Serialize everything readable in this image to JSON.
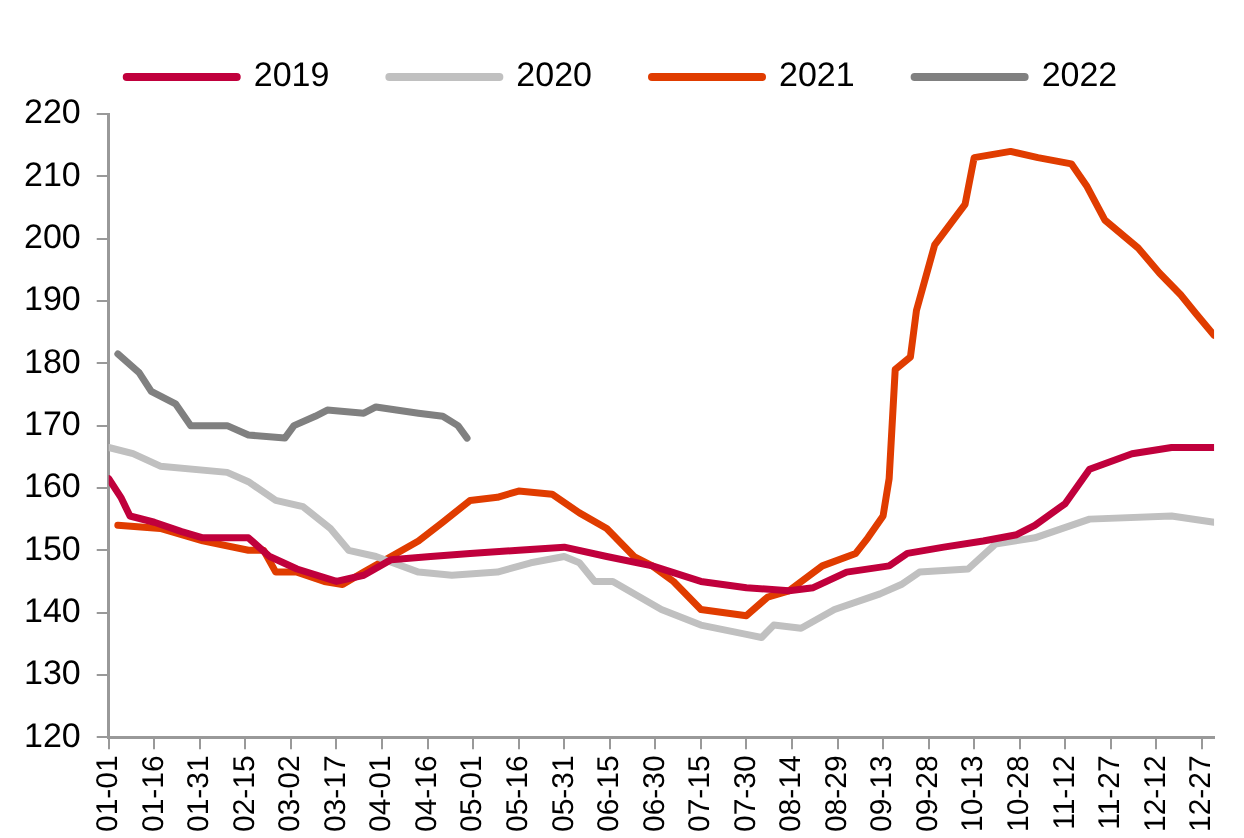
{
  "chart_data": {
    "type": "line",
    "xlim": [
      "--01-01",
      "--12-31"
    ],
    "ylim": [
      120,
      220
    ],
    "yticks": [
      120,
      130,
      140,
      150,
      160,
      170,
      180,
      190,
      200,
      210,
      220
    ],
    "xticks": [
      {
        "value": "--01-01",
        "label": "01-01"
      },
      {
        "value": "--01-16",
        "label": "01-16"
      },
      {
        "value": "--01-31",
        "label": "01-31"
      },
      {
        "value": "--02-15",
        "label": "02-15"
      },
      {
        "value": "--03-02",
        "label": "03-02"
      },
      {
        "value": "--03-17",
        "label": "03-17"
      },
      {
        "value": "--04-01",
        "label": "04-01"
      },
      {
        "value": "--04-16",
        "label": "04-16"
      },
      {
        "value": "--05-01",
        "label": "05-01"
      },
      {
        "value": "--05-16",
        "label": "05-16"
      },
      {
        "value": "--05-31",
        "label": "05-31"
      },
      {
        "value": "--06-15",
        "label": "06-15"
      },
      {
        "value": "--06-30",
        "label": "06-30"
      },
      {
        "value": "--07-15",
        "label": "07-15"
      },
      {
        "value": "--07-30",
        "label": "07-30"
      },
      {
        "value": "--08-14",
        "label": "08-14"
      },
      {
        "value": "--08-29",
        "label": "08-29"
      },
      {
        "value": "--09-13",
        "label": "09-13"
      },
      {
        "value": "--09-28",
        "label": "09-28"
      },
      {
        "value": "--10-13",
        "label": "10-13"
      },
      {
        "value": "--10-28",
        "label": "10-28"
      },
      {
        "value": "--11-12",
        "label": "11-12"
      },
      {
        "value": "--11-27",
        "label": "11-27"
      },
      {
        "value": "--12-12",
        "label": "12-12"
      },
      {
        "value": "--12-27",
        "label": "12-27"
      }
    ],
    "grid": false,
    "legend": "top",
    "marker": "none",
    "line_style": "solid",
    "series": [
      {
        "name": "2019",
        "color": "#c0003c",
        "x": [
          "--01-01",
          "--01-05",
          "--01-08",
          "--01-16",
          "--01-25",
          "--02-01",
          "--02-16",
          "--02-23",
          "--03-04",
          "--03-17",
          "--03-26",
          "--04-04",
          "--04-17",
          "--04-30",
          "--05-16",
          "--05-31",
          "--06-14",
          "--06-29",
          "--07-15",
          "--07-30",
          "--08-13",
          "--08-21",
          "--09-01",
          "--09-15",
          "--09-21",
          "--10-03",
          "--10-16",
          "--10-27",
          "--11-02",
          "--11-12",
          "--11-20",
          "--12-04",
          "--12-17",
          "--12-31"
        ],
        "values": [
          161.5,
          158.5,
          155.5,
          154.5,
          153,
          152,
          152,
          149,
          147,
          145,
          146,
          148.5,
          149,
          149.5,
          150,
          150.5,
          149,
          147.5,
          145,
          144,
          143.5,
          144,
          146.5,
          147.5,
          149.5,
          150.5,
          151.5,
          152.5,
          154,
          157.5,
          163,
          165.5,
          166.5,
          166.5
        ]
      },
      {
        "name": "2020",
        "color": "#c0c0c0",
        "x": [
          "--01-01",
          "--01-09",
          "--01-18",
          "--02-09",
          "--02-16",
          "--02-25",
          "--03-06",
          "--03-15",
          "--03-21",
          "--03-30",
          "--04-13",
          "--04-24",
          "--05-09",
          "--05-20",
          "--05-31",
          "--06-05",
          "--06-10",
          "--06-16",
          "--07-02",
          "--07-15",
          "--07-30",
          "--08-04",
          "--08-08",
          "--08-17",
          "--08-28",
          "--09-12",
          "--09-19",
          "--09-25",
          "--10-11",
          "--10-20",
          "--11-02",
          "--11-20",
          "--12-17",
          "--12-31"
        ],
        "values": [
          166.5,
          165.5,
          163.5,
          162.5,
          161,
          158,
          157,
          153.5,
          150,
          149,
          146.5,
          146,
          146.5,
          148,
          149,
          148,
          145,
          145,
          140.5,
          138,
          136.5,
          136,
          138,
          137.5,
          140.5,
          143,
          144.5,
          146.5,
          147,
          151,
          152,
          155,
          155.5,
          154.5
        ]
      },
      {
        "name": "2021",
        "color": "#e03c00",
        "x": [
          "--01-04",
          "--01-18",
          "--02-01",
          "--02-16",
          "--02-21",
          "--02-25",
          "--03-04",
          "--03-13",
          "--03-19",
          "--03-26",
          "--04-04",
          "--04-13",
          "--04-21",
          "--04-30",
          "--05-09",
          "--05-16",
          "--05-27",
          "--06-05",
          "--06-14",
          "--06-23",
          "--06-29",
          "--07-06",
          "--07-15",
          "--07-30",
          "--08-06",
          "--08-13",
          "--08-24",
          "--09-04",
          "--09-08",
          "--09-13",
          "--09-15",
          "--09-17",
          "--09-22",
          "--09-24",
          "--09-30",
          "--10-10",
          "--10-13",
          "--10-25",
          "--11-03",
          "--11-14",
          "--11-19",
          "--11-25",
          "--12-06",
          "--12-13",
          "--12-20",
          "--12-25",
          "--12-31"
        ],
        "values": [
          154,
          153.5,
          151.5,
          150,
          150,
          146.5,
          146.5,
          145,
          144.5,
          146.5,
          149,
          151.5,
          154.5,
          158,
          158.5,
          159.5,
          159,
          156,
          153.5,
          149,
          147.5,
          145,
          140.5,
          139.5,
          142.5,
          143.5,
          147.5,
          149.5,
          152,
          155.5,
          161.5,
          179,
          181,
          188.5,
          199,
          205.5,
          213,
          214,
          213,
          212,
          208.5,
          203,
          198.5,
          194.5,
          191,
          188,
          184.5
        ]
      },
      {
        "name": "2022",
        "color": "#808080",
        "x": [
          "--01-04",
          "--01-11",
          "--01-15",
          "--01-23",
          "--01-28",
          "--02-09",
          "--02-16",
          "--02-28",
          "--03-03",
          "--03-10",
          "--03-14",
          "--03-26",
          "--03-30",
          "--04-13",
          "--04-21",
          "--04-26",
          "--04-29"
        ],
        "values": [
          181.5,
          178.5,
          175.5,
          173.5,
          170,
          170,
          168.5,
          168,
          170,
          171.5,
          172.5,
          172,
          173,
          172,
          171.5,
          170,
          168
        ]
      }
    ]
  }
}
